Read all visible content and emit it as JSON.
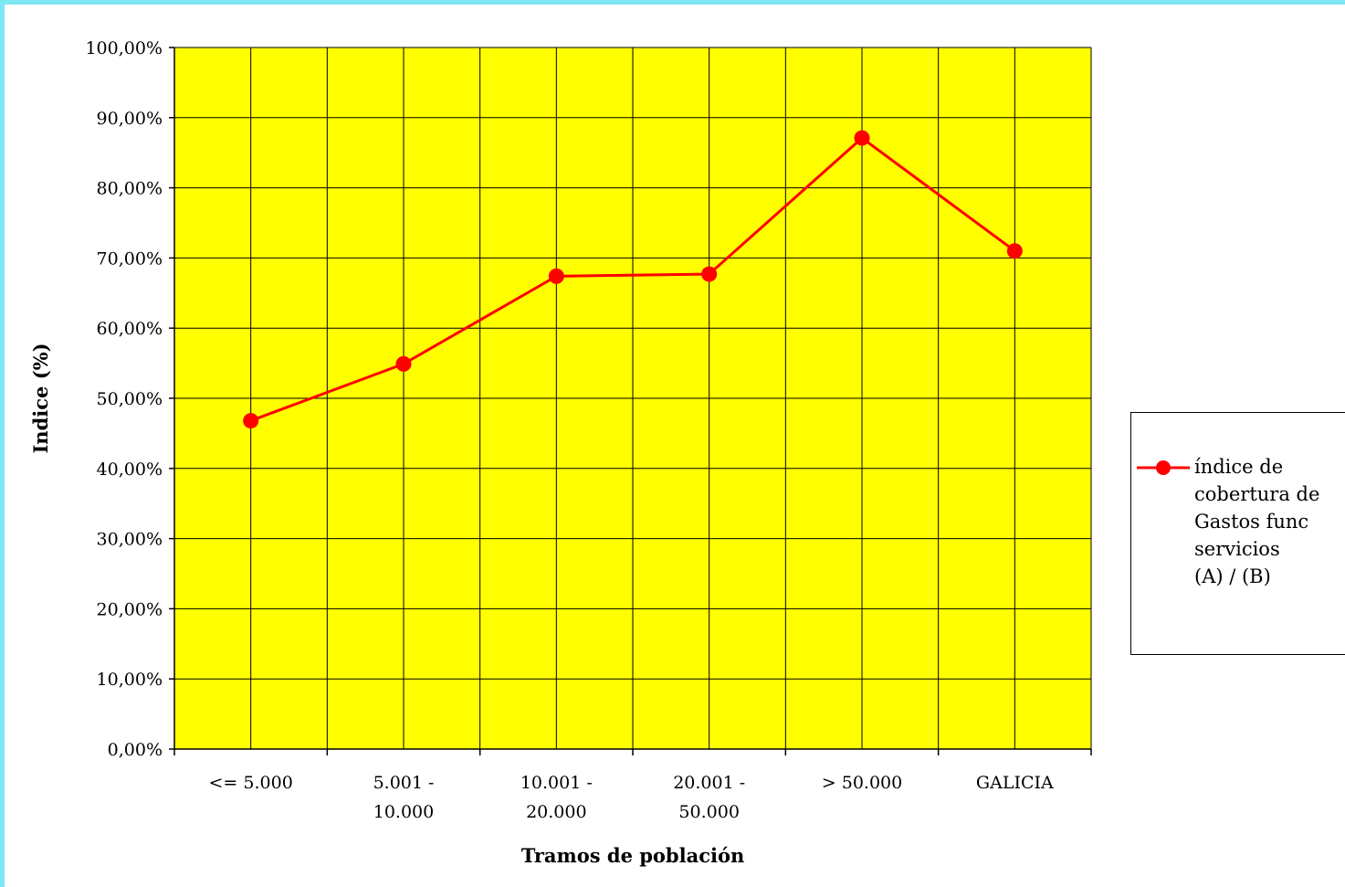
{
  "chart_data": {
    "type": "line",
    "categories": [
      [
        "<= 5.000"
      ],
      [
        "5.001 -",
        "10.000"
      ],
      [
        "10.001 -",
        "20.000"
      ],
      [
        "20.001 -",
        "50.000"
      ],
      [
        "> 50.000"
      ],
      [
        "GALICIA"
      ]
    ],
    "series": [
      {
        "name": "índice de cobertura de Gastos func servicios (A) / (B)",
        "legend_lines": [
          "índice de",
          "cobertura de",
          "Gastos func",
          "servicios",
          "(A) / (B)"
        ],
        "values": [
          46.8,
          54.9,
          67.4,
          67.7,
          87.1,
          71.0
        ]
      }
    ],
    "yticks": [
      "0,00%",
      "10,00%",
      "20,00%",
      "30,00%",
      "40,00%",
      "50,00%",
      "60,00%",
      "70,00%",
      "80,00%",
      "90,00%",
      "100,00%"
    ],
    "ylim": [
      0,
      100
    ],
    "xlabel": "Tramos de población",
    "ylabel": "Indice (%)",
    "grid": true,
    "legend_position": "right",
    "colors": {
      "plot_background": "#ffff00",
      "series": "#ff0000",
      "frame_border": "#7fe6f3",
      "grid": "#000000"
    }
  }
}
